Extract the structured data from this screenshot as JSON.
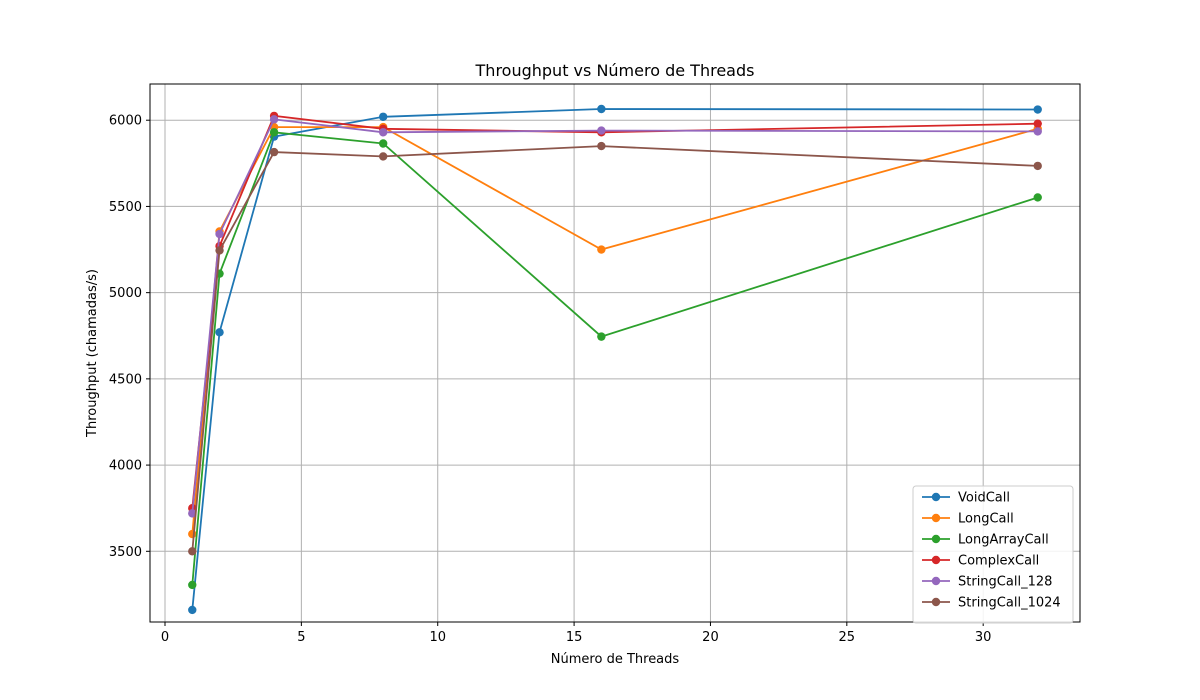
{
  "chart_data": {
    "type": "line",
    "title": "Throughput vs Número de Threads",
    "xlabel": "Número de Threads",
    "ylabel": "Throughput (chamadas/s)",
    "xlim": [
      -0.55,
      33.55
    ],
    "ylim": [
      3090,
      6210
    ],
    "xticks": [
      0,
      5,
      10,
      15,
      20,
      25,
      30
    ],
    "yticks": [
      3500,
      4000,
      4500,
      5000,
      5500,
      6000
    ],
    "grid": true,
    "legend_position": "lower right",
    "x": [
      1,
      2,
      4,
      8,
      16,
      32
    ],
    "series": [
      {
        "name": "VoidCall",
        "color": "#1f77b4",
        "values": [
          3160,
          4770,
          5905,
          6020,
          6065,
          6062
        ]
      },
      {
        "name": "LongCall",
        "color": "#ff7f0e",
        "values": [
          3600,
          5355,
          5960,
          5960,
          5250,
          5950
        ]
      },
      {
        "name": "LongArrayCall",
        "color": "#2ca02c",
        "values": [
          3305,
          5110,
          5930,
          5865,
          4745,
          5552
        ]
      },
      {
        "name": "ComplexCall",
        "color": "#d62728",
        "values": [
          3750,
          5270,
          6025,
          5950,
          5930,
          5980
        ]
      },
      {
        "name": "StringCall_128",
        "color": "#9467bd",
        "values": [
          3720,
          5340,
          6005,
          5930,
          5940,
          5935
        ]
      },
      {
        "name": "StringCall_1024",
        "color": "#8c564b",
        "values": [
          3500,
          5245,
          5815,
          5790,
          5850,
          5735
        ]
      }
    ]
  }
}
